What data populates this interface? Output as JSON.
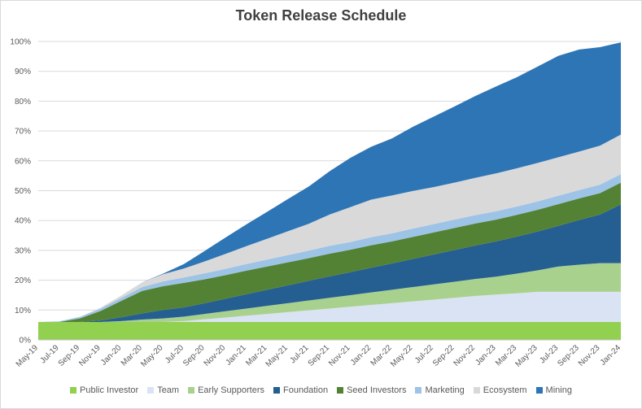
{
  "chart_data": {
    "type": "area",
    "stacked": true,
    "title": "Token Release Schedule",
    "ylim": [
      0,
      100
    ],
    "y_ticks": [
      "0%",
      "10%",
      "20%",
      "30%",
      "40%",
      "50%",
      "60%",
      "70%",
      "80%",
      "90%",
      "100%"
    ],
    "x": [
      "May-19",
      "Jul-19",
      "Sep-19",
      "Nov-19",
      "Jan-20",
      "Mar-20",
      "May-20",
      "Jul-20",
      "Sep-20",
      "Nov-20",
      "Jan-21",
      "Mar-21",
      "May-21",
      "Jul-21",
      "Sep-21",
      "Nov-21",
      "Jan-22",
      "Mar-22",
      "May-22",
      "Jul-22",
      "Sep-22",
      "Nov-22",
      "Jan-23",
      "Mar-23",
      "May-23",
      "Jul-23",
      "Sep-23",
      "Nov-23",
      "Jan-24"
    ],
    "grid": true,
    "legend_position": "bottom",
    "series": [
      {
        "name": "Public Investor",
        "color": "#92d050",
        "values": [
          6,
          6,
          6,
          6,
          6,
          6,
          6,
          6,
          6,
          6,
          6,
          6,
          6,
          6,
          6,
          6,
          6,
          6,
          6,
          6,
          6,
          6,
          6,
          6,
          6,
          6,
          6,
          6,
          6
        ]
      },
      {
        "name": "Team",
        "color": "#dae3f3",
        "values": [
          0,
          0,
          0,
          0,
          0,
          0,
          0,
          0.3,
          0.9,
          1.5,
          2.1,
          2.7,
          3.3,
          3.9,
          4.5,
          5.1,
          5.7,
          6.3,
          6.9,
          7.5,
          8.1,
          8.7,
          9.2,
          9.6,
          10.1,
          10.1,
          10.1,
          10.1,
          10.1
        ]
      },
      {
        "name": "Early Supporters",
        "color": "#a9d18e",
        "values": [
          0,
          0,
          0,
          0,
          0.3,
          0.8,
          1.2,
          1.5,
          1.8,
          2.1,
          2.4,
          2.7,
          3,
          3.3,
          3.6,
          3.9,
          4.2,
          4.5,
          4.8,
          5.1,
          5.4,
          5.7,
          6,
          6.6,
          7.2,
          8.5,
          9.1,
          9.6,
          9.6
        ]
      },
      {
        "name": "Foundation",
        "color": "#255e91",
        "values": [
          0,
          0,
          0,
          0.5,
          1.3,
          2.1,
          2.8,
          3.1,
          3.6,
          4.2,
          4.8,
          5.4,
          6,
          6.6,
          7.2,
          7.7,
          8.3,
          8.8,
          9.4,
          10,
          10.6,
          11.2,
          11.8,
          12.4,
          13,
          13.6,
          15,
          16.3,
          19.7
        ]
      },
      {
        "name": "Seed Investors",
        "color": "#548235",
        "values": [
          0,
          0,
          1.2,
          3.2,
          5.5,
          7.5,
          8,
          8.2,
          8,
          7.9,
          7.9,
          7.8,
          7.7,
          7.6,
          7.6,
          7.5,
          7.5,
          7.4,
          7.4,
          7.4,
          7.4,
          7.4,
          7.3,
          7.3,
          7.3,
          7.3,
          7.2,
          7.2,
          7.3
        ]
      },
      {
        "name": "Marketing",
        "color": "#9dc3e6",
        "values": [
          0,
          0.2,
          0.5,
          0.8,
          1,
          1.3,
          1.6,
          1.8,
          2,
          2.1,
          2.2,
          2.3,
          2.4,
          2.5,
          2.6,
          2.6,
          2.7,
          2.7,
          2.8,
          2.8,
          2.8,
          2.8,
          2.8,
          2.8,
          2.8,
          2.8,
          2.8,
          2.8,
          2.8
        ]
      },
      {
        "name": "Ecosystem",
        "color": "#d9d9d9",
        "values": [
          0,
          0,
          0,
          0.3,
          0.8,
          1.6,
          2.4,
          3,
          4,
          5,
          6,
          7,
          8,
          9,
          10.5,
          11.7,
          12.6,
          12.7,
          12.6,
          12.4,
          12.4,
          12.5,
          12.7,
          12.8,
          12.9,
          12.9,
          12.9,
          13.1,
          13.3
        ]
      },
      {
        "name": "Mining",
        "color": "#2e75b6",
        "values": [
          0,
          0,
          0,
          0,
          0,
          0,
          0.2,
          1.5,
          3.5,
          5.5,
          7.3,
          9,
          10.8,
          12.5,
          14.5,
          16.5,
          17.7,
          19.1,
          21.5,
          23.6,
          25.5,
          27.4,
          29.1,
          30.5,
          32.3,
          34,
          34.2,
          33,
          30.9
        ]
      }
    ]
  }
}
